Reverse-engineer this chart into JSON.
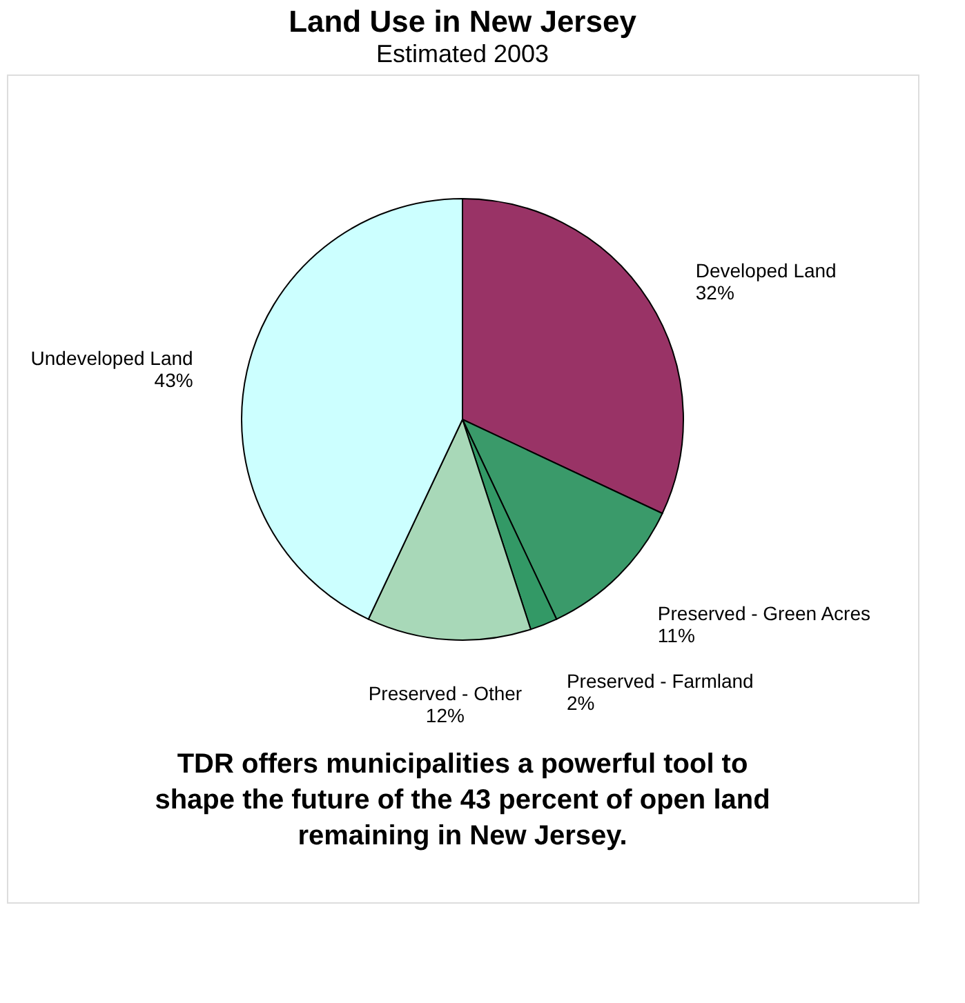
{
  "chart_data": {
    "type": "pie",
    "title": "Land Use in New Jersey",
    "subtitle": "Estimated 2003",
    "categories": [
      "Developed Land",
      "Preserved - Green Acres",
      "Preserved - Farmland",
      "Preserved - Other",
      "Undeveloped Land"
    ],
    "values": [
      32,
      11,
      2,
      12,
      43
    ],
    "value_labels": [
      "32%",
      "11%",
      "2%",
      "12%",
      "43%"
    ],
    "colors": [
      "#993366",
      "#3a9a6a",
      "#339966",
      "#a8d8b8",
      "#ccffff"
    ],
    "legend": false,
    "annotations": [
      "TDR offers municipalities a powerful tool to shape the future of the 43 percent of open land remaining in New Jersey."
    ]
  }
}
